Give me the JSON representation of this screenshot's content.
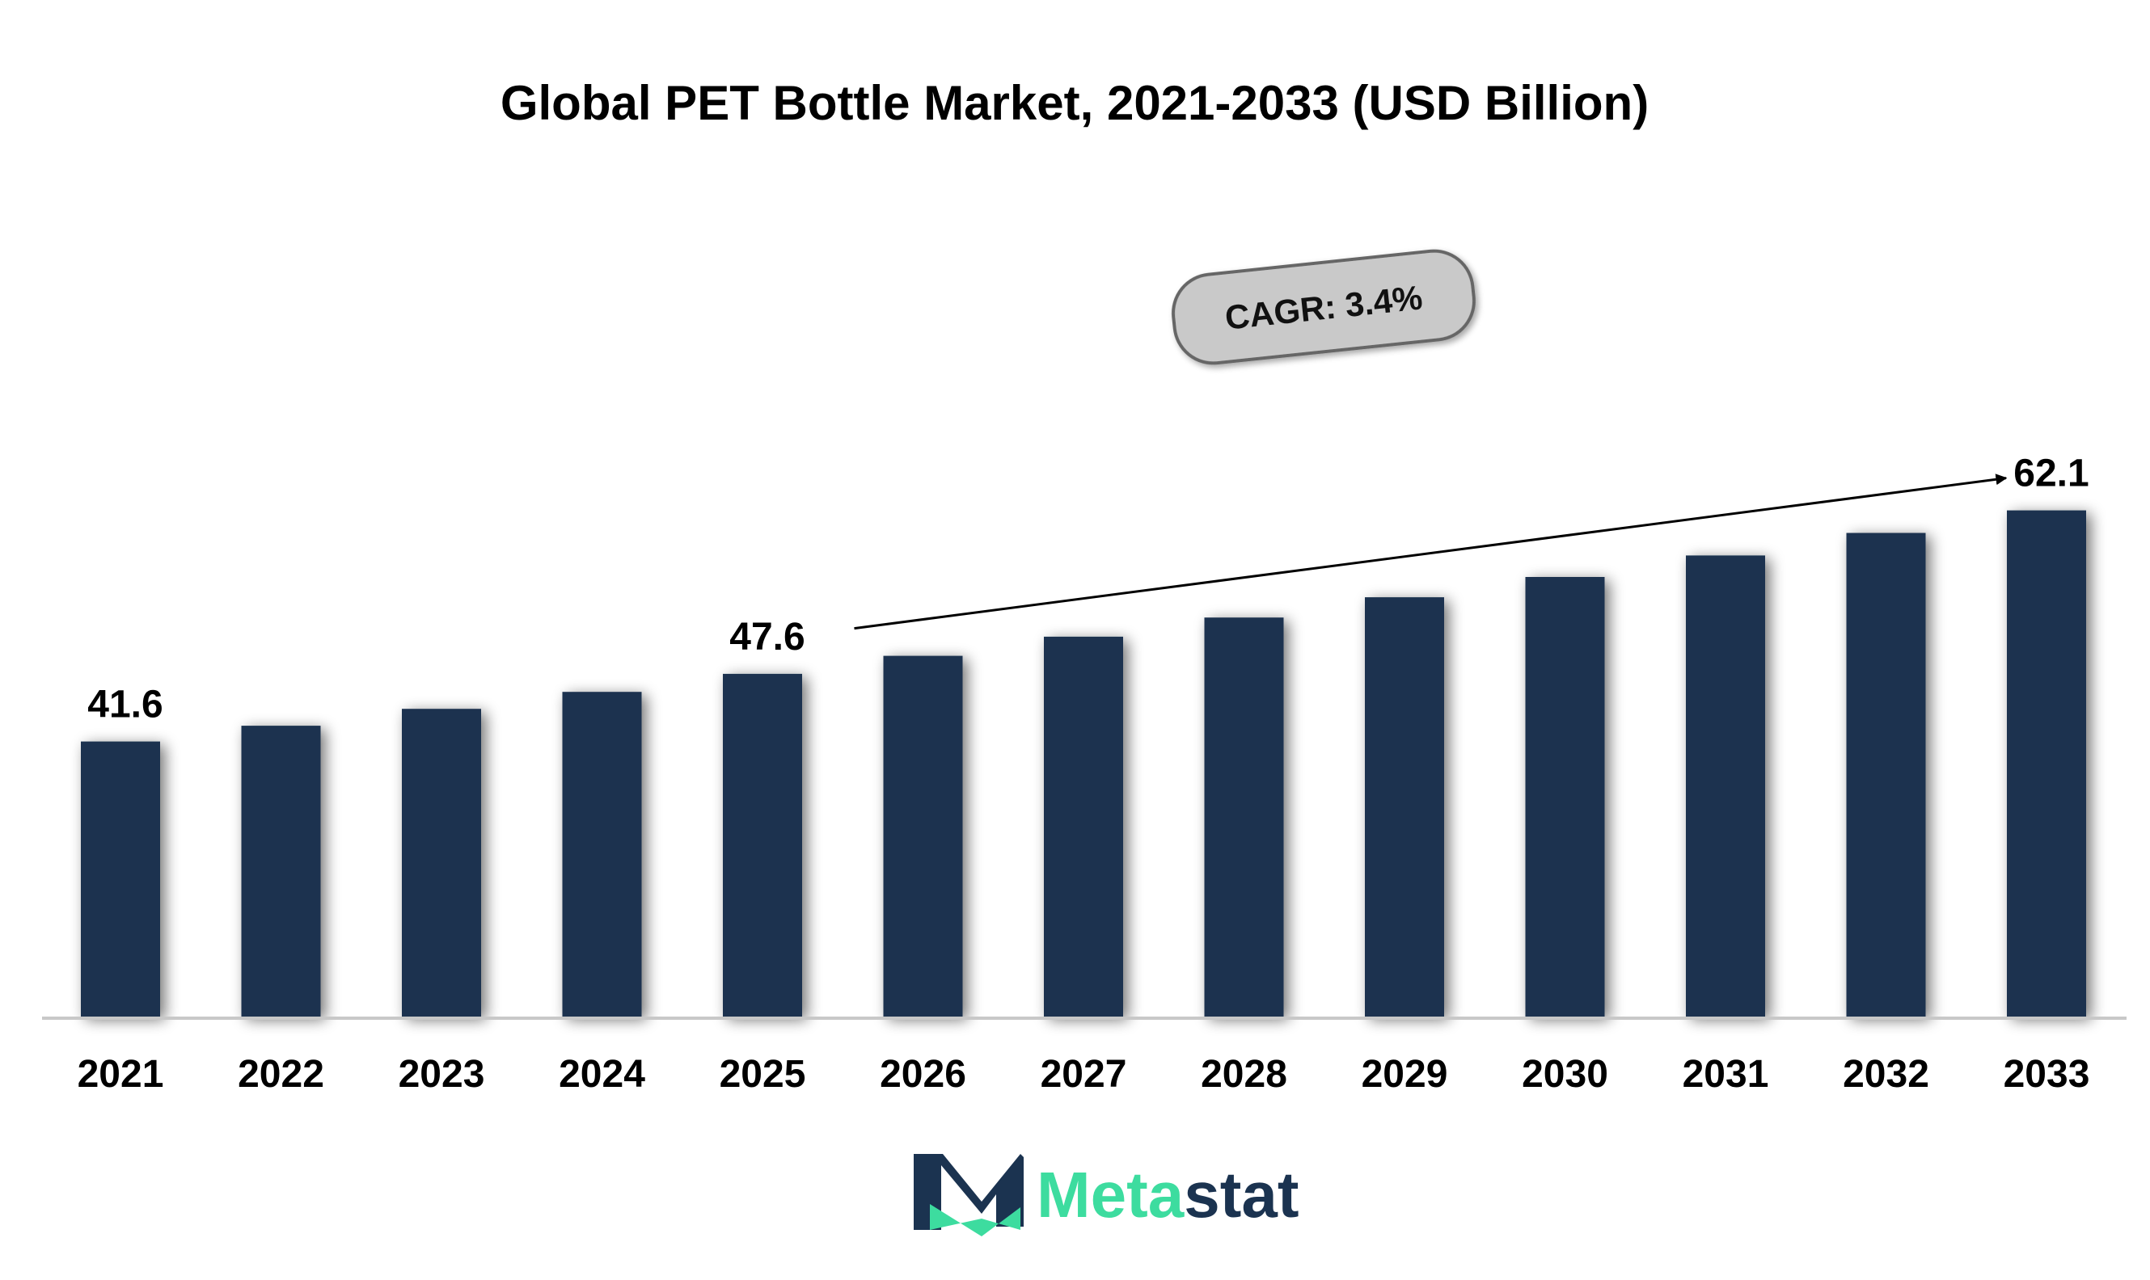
{
  "chart_data": {
    "type": "bar",
    "title": "Global PET Bottle Market, 2021-2033 (USD Billion)",
    "categories": [
      "2021",
      "2022",
      "2023",
      "2024",
      "2025",
      "2026",
      "2027",
      "2028",
      "2029",
      "2030",
      "2031",
      "2032",
      "2033"
    ],
    "values": [
      41.6,
      43.0,
      44.5,
      46.0,
      47.6,
      49.2,
      50.9,
      52.6,
      54.4,
      56.2,
      58.1,
      60.1,
      62.1
    ],
    "data_labels": [
      {
        "index": 0,
        "text": "41.6"
      },
      {
        "index": 4,
        "text": "47.6"
      },
      {
        "index": 12,
        "text": "62.1"
      }
    ],
    "annotation": {
      "text": "CAGR: 3.4%",
      "from_index": 5,
      "to_index": 12
    },
    "ylim": [
      0,
      66
    ],
    "grid": false,
    "legend": "none",
    "colors": {
      "bar": "#1b3350",
      "axis": "#c8c8c8",
      "annotation_fill": "#c9c9c9",
      "annotation_stroke": "#666666"
    }
  },
  "logo": {
    "prefix": "Meta",
    "suffix": "stat",
    "icon": "metastat-m-logo-icon",
    "colors": {
      "prefix": "#3ddc9f",
      "suffix": "#1b3350"
    }
  }
}
